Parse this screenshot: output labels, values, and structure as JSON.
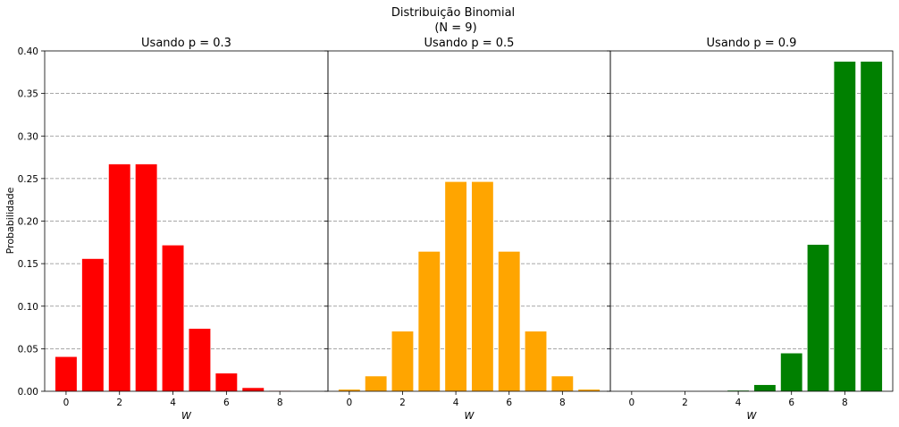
{
  "figure": {
    "suptitle_line1": "Distribuição Binomial",
    "suptitle_line2": "(N = 9)",
    "ylabel": "Probabilidade",
    "y_ticks": [
      "0.00",
      "0.05",
      "0.10",
      "0.15",
      "0.20",
      "0.25",
      "0.30",
      "0.35",
      "0.40"
    ],
    "x_ticks": [
      "0",
      "2",
      "4",
      "6",
      "8"
    ]
  },
  "chart_data": [
    {
      "type": "bar",
      "title": "Usando p = 0.3",
      "xlabel": "W",
      "ylabel": "Probabilidade",
      "color": "#ff0000",
      "categories": [
        0,
        1,
        2,
        3,
        4,
        5,
        6,
        7,
        8,
        9
      ],
      "values": [
        0.0404,
        0.1556,
        0.2668,
        0.2668,
        0.1715,
        0.0735,
        0.021,
        0.0039,
        0.0004,
        2e-05
      ],
      "ylim": [
        0,
        0.4
      ],
      "grid": "y-dashed"
    },
    {
      "type": "bar",
      "title": "Usando p = 0.5",
      "xlabel": "W",
      "color": "#ffa500",
      "categories": [
        0,
        1,
        2,
        3,
        4,
        5,
        6,
        7,
        8,
        9
      ],
      "values": [
        0.002,
        0.0176,
        0.0703,
        0.1641,
        0.2461,
        0.2461,
        0.1641,
        0.0703,
        0.0176,
        0.002
      ],
      "ylim": [
        0,
        0.4
      ],
      "grid": "y-dashed"
    },
    {
      "type": "bar",
      "title": "Usando p = 0.9",
      "xlabel": "W",
      "color": "#008000",
      "categories": [
        0,
        1,
        2,
        3,
        4,
        5,
        6,
        7,
        8,
        9
      ],
      "values": [
        0.0,
        0.0,
        0.0,
        4e-05,
        0.0008,
        0.0074,
        0.0446,
        0.1722,
        0.3874,
        0.3874
      ],
      "ylim": [
        0,
        0.4
      ],
      "grid": "y-dashed"
    }
  ]
}
